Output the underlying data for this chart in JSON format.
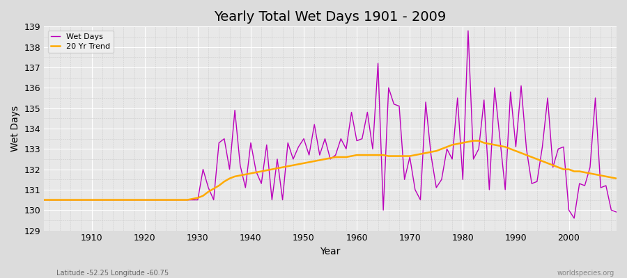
{
  "title": "Yearly Total Wet Days 1901 - 2009",
  "xlabel": "Year",
  "ylabel": "Wet Days",
  "bottom_left": "Latitude -52.25 Longitude -60.75",
  "bottom_right": "worldspecies.org",
  "ylim": [
    129,
    139
  ],
  "xlim": [
    1901,
    2009
  ],
  "bg_color": "#dcdcdc",
  "plot_bg_color": "#e8e8e8",
  "wet_days_color": "#bb00bb",
  "trend_color": "#ffaa00",
  "years": [
    1901,
    1902,
    1903,
    1904,
    1905,
    1906,
    1907,
    1908,
    1909,
    1910,
    1911,
    1912,
    1913,
    1914,
    1915,
    1916,
    1917,
    1918,
    1919,
    1920,
    1921,
    1922,
    1923,
    1924,
    1925,
    1926,
    1927,
    1928,
    1929,
    1930,
    1931,
    1932,
    1933,
    1934,
    1935,
    1936,
    1937,
    1938,
    1939,
    1940,
    1941,
    1942,
    1943,
    1944,
    1945,
    1946,
    1947,
    1948,
    1949,
    1950,
    1951,
    1952,
    1953,
    1954,
    1955,
    1956,
    1957,
    1958,
    1959,
    1960,
    1961,
    1962,
    1963,
    1964,
    1965,
    1966,
    1967,
    1968,
    1969,
    1970,
    1971,
    1972,
    1973,
    1974,
    1975,
    1976,
    1977,
    1978,
    1979,
    1980,
    1981,
    1982,
    1983,
    1984,
    1985,
    1986,
    1987,
    1988,
    1989,
    1990,
    1991,
    1992,
    1993,
    1994,
    1995,
    1996,
    1997,
    1998,
    1999,
    2000,
    2001,
    2002,
    2003,
    2004,
    2005,
    2006,
    2007,
    2008,
    2009
  ],
  "wet_days": [
    130.5,
    130.5,
    130.5,
    130.5,
    130.5,
    130.5,
    130.5,
    130.5,
    130.5,
    130.5,
    130.5,
    130.5,
    130.5,
    130.5,
    130.5,
    130.5,
    130.5,
    130.5,
    130.5,
    130.5,
    130.5,
    130.5,
    130.5,
    130.5,
    130.5,
    130.5,
    130.5,
    130.5,
    130.5,
    130.5,
    132.0,
    131.1,
    130.5,
    133.3,
    133.5,
    132.0,
    134.9,
    132.2,
    131.1,
    133.3,
    131.9,
    131.3,
    133.2,
    130.5,
    132.5,
    130.5,
    133.3,
    132.5,
    133.1,
    133.5,
    132.7,
    134.2,
    132.7,
    133.5,
    132.5,
    132.7,
    133.5,
    133.0,
    134.8,
    133.4,
    133.5,
    134.8,
    133.0,
    137.2,
    130.0,
    136.0,
    135.2,
    135.1,
    131.5,
    132.6,
    131.0,
    130.5,
    135.3,
    132.7,
    131.1,
    131.5,
    133.0,
    132.5,
    135.5,
    131.5,
    138.8,
    132.5,
    133.0,
    135.4,
    131.0,
    136.0,
    133.5,
    131.0,
    135.8,
    133.1,
    136.1,
    133.0,
    131.3,
    131.4,
    133.1,
    135.5,
    132.1,
    133.0,
    133.1,
    130.0,
    129.6,
    131.3,
    131.2,
    132.1,
    135.5,
    131.1,
    131.2,
    130.0,
    129.9
  ],
  "trend": [
    130.5,
    130.5,
    130.5,
    130.5,
    130.5,
    130.5,
    130.5,
    130.5,
    130.5,
    130.5,
    130.5,
    130.5,
    130.5,
    130.5,
    130.5,
    130.5,
    130.5,
    130.5,
    130.5,
    130.5,
    130.5,
    130.5,
    130.5,
    130.5,
    130.5,
    130.5,
    130.5,
    130.5,
    130.55,
    130.6,
    130.7,
    130.9,
    131.05,
    131.2,
    131.4,
    131.55,
    131.65,
    131.7,
    131.75,
    131.8,
    131.85,
    131.9,
    131.95,
    132.0,
    132.05,
    132.1,
    132.15,
    132.2,
    132.25,
    132.3,
    132.35,
    132.4,
    132.45,
    132.5,
    132.55,
    132.6,
    132.6,
    132.6,
    132.65,
    132.7,
    132.7,
    132.7,
    132.7,
    132.7,
    132.7,
    132.65,
    132.65,
    132.65,
    132.65,
    132.65,
    132.7,
    132.75,
    132.8,
    132.85,
    132.9,
    133.0,
    133.1,
    133.2,
    133.25,
    133.3,
    133.35,
    133.4,
    133.4,
    133.3,
    133.25,
    133.2,
    133.15,
    133.1,
    133.0,
    132.9,
    132.8,
    132.7,
    132.6,
    132.5,
    132.4,
    132.3,
    132.2,
    132.1,
    132.0,
    132.0,
    131.9,
    131.9,
    131.85,
    131.8,
    131.75,
    131.7,
    131.65,
    131.6,
    131.55
  ]
}
